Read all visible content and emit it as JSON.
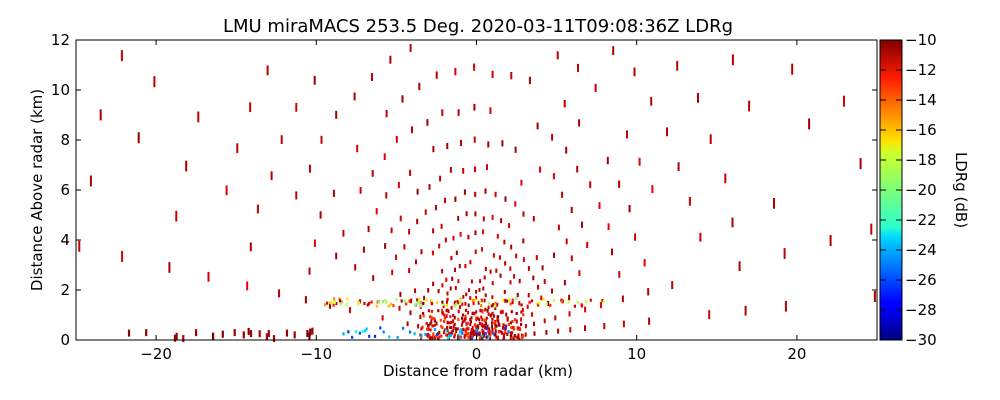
{
  "chart_data": {
    "type": "scatter",
    "title": "LMU miraMACS 253.5 Deg. 2020-03-11T09:08:36Z  LDRg",
    "xlabel": "Distance from radar (km)",
    "ylabel": "Distance Above radar  (km)",
    "xlim": [
      -25,
      25
    ],
    "ylim": [
      0,
      12
    ],
    "xticks": [
      -20,
      -10,
      0,
      10,
      20
    ],
    "xtick_labels": [
      "−20",
      "−10",
      "0",
      "10",
      "20"
    ],
    "yticks": [
      0,
      2,
      4,
      6,
      8,
      10,
      12
    ],
    "ytick_labels": [
      "0",
      "2",
      "4",
      "6",
      "8",
      "10",
      "12"
    ],
    "grid": false,
    "colorbar": {
      "label": "LDRg (dB)",
      "range": [
        -30,
        -10
      ],
      "ticks": [
        -30,
        -28,
        -26,
        -24,
        -22,
        -20,
        -18,
        -16,
        -14,
        -12,
        -10
      ],
      "tick_labels": [
        "−30",
        "−28",
        "−26",
        "−24",
        "−22",
        "−20",
        "−18",
        "−16",
        "−14",
        "−12",
        "−10"
      ],
      "colormap": "jet"
    },
    "scan": {
      "range_gates_km": [
        0.4,
        0.8,
        1.2,
        1.6,
        2.0,
        2.5,
        3.0,
        3.6,
        4.3,
        5.0,
        5.9,
        6.9,
        8.0,
        9.3,
        10.8,
        12.5,
        14.5,
        16.8,
        19.5,
        22.5,
        25.0
      ],
      "base_ldr_db": -10.5
    },
    "clusters": [
      {
        "name": "near-ground-clutter",
        "x_range": [
          -3.5,
          3.0
        ],
        "y_range": [
          0.0,
          1.2
        ],
        "count": 240,
        "ldr_range": [
          -14,
          -10
        ]
      },
      {
        "name": "low-level-band",
        "x_range": [
          -9.5,
          8.0
        ],
        "y_range": [
          1.35,
          1.65
        ],
        "count": 110,
        "ldr_range": [
          -20,
          -10
        ]
      },
      {
        "name": "low-level-cold",
        "x_range": [
          -8.5,
          2.5
        ],
        "y_range": [
          0.0,
          0.5
        ],
        "count": 45,
        "ldr_range": [
          -27,
          -22
        ]
      },
      {
        "name": "surface-return-left",
        "x_range": [
          -24.0,
          -10.0
        ],
        "y_range": [
          0.0,
          0.4
        ],
        "count": 22,
        "ldr_range": [
          -11,
          -10
        ]
      }
    ]
  }
}
